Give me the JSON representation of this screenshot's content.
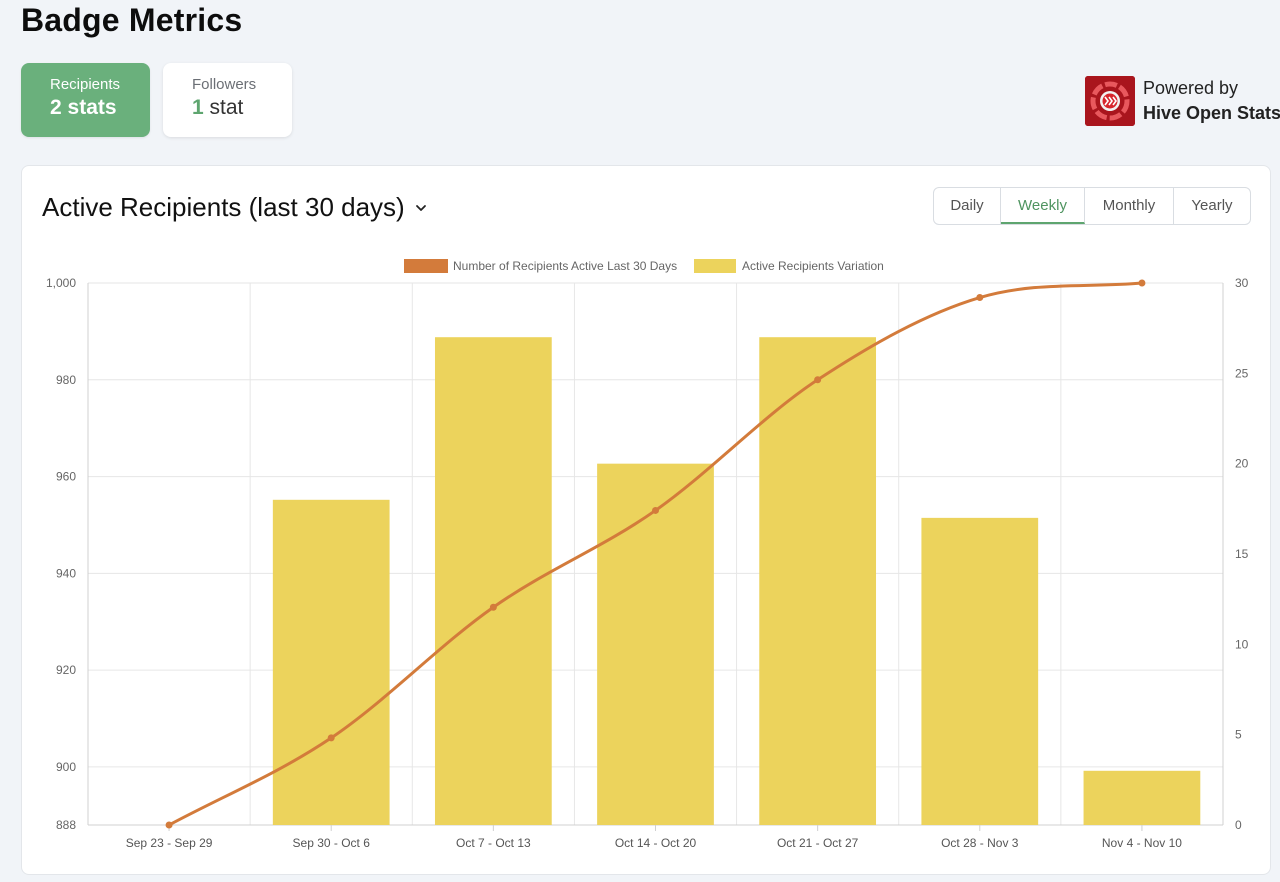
{
  "page": {
    "title": "Badge Metrics"
  },
  "tabs": [
    {
      "label": "Recipients",
      "value_num": "2",
      "value_unit": " stats",
      "active": true
    },
    {
      "label": "Followers",
      "value_num": "1",
      "value_unit": " stat",
      "active": false
    }
  ],
  "powered": {
    "line1": "Powered by",
    "line2": "Hive Open Stats"
  },
  "panel": {
    "title": "Active Recipients (last 30 days)"
  },
  "periods": [
    "Daily",
    "Weekly",
    "Monthly",
    "Yearly"
  ],
  "selected_period": "Weekly",
  "colors": {
    "accent": "#6ab07c",
    "line": "#d37b3b",
    "bar": "#ecd35c"
  },
  "chart_data": {
    "type": "bar",
    "categories": [
      "Sep 23 - Sep 29",
      "Sep 30 - Oct 6",
      "Oct 7 - Oct 13",
      "Oct 14 - Oct 20",
      "Oct 21 - Oct 27",
      "Oct 28 - Nov 3",
      "Nov 4 - Nov 10"
    ],
    "series": [
      {
        "name": "Number of Recipients Active Last 30 Days",
        "type": "line",
        "axis": "left",
        "color": "#d37b3b",
        "values": [
          888,
          906,
          933,
          953,
          980,
          997,
          1000
        ]
      },
      {
        "name": "Active Recipients Variation",
        "type": "bar",
        "axis": "right",
        "color": "#ecd35c",
        "values": [
          0,
          18,
          27,
          20,
          27,
          17,
          3
        ]
      }
    ],
    "y_left": {
      "min": 888,
      "max": 1000,
      "ticks": [
        "1,000",
        "980",
        "960",
        "940",
        "920",
        "900",
        "888"
      ],
      "tick_values": [
        1000,
        980,
        960,
        940,
        920,
        900,
        888
      ]
    },
    "y_right": {
      "min": 0,
      "max": 30,
      "ticks": [
        "30",
        "25",
        "20",
        "15",
        "10",
        "5",
        "0"
      ],
      "tick_values": [
        30,
        25,
        20,
        15,
        10,
        5,
        0
      ]
    },
    "grid": true,
    "legend_position": "top"
  }
}
